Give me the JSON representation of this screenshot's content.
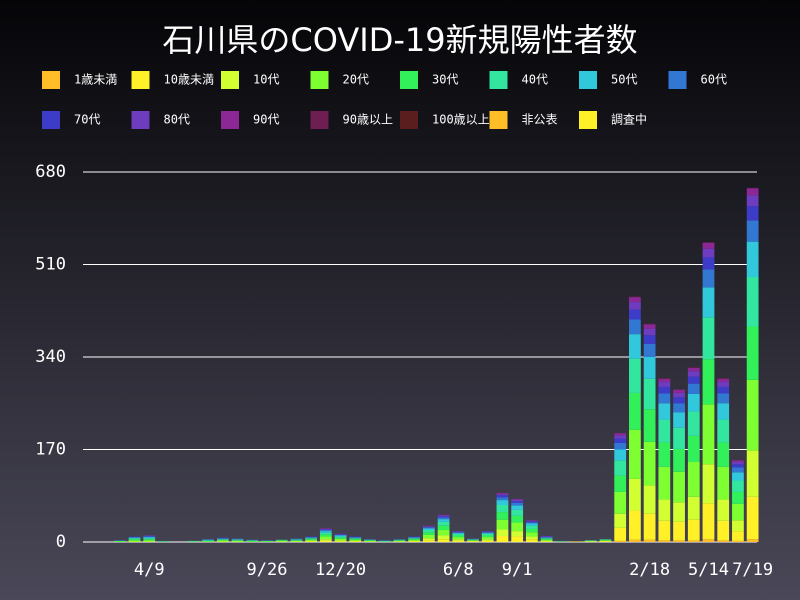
{
  "chart_data": {
    "type": "bar",
    "stacked": true,
    "title": "石川県のCOVID-19新規陽性者数",
    "categories": [
      null,
      null,
      null,
      null,
      "4/9",
      null,
      null,
      null,
      null,
      null,
      null,
      null,
      "9/26",
      null,
      null,
      null,
      null,
      "12/20",
      null,
      null,
      null,
      null,
      null,
      null,
      null,
      "6/8",
      null,
      null,
      null,
      "9/1",
      null,
      null,
      null,
      null,
      null,
      null,
      null,
      null,
      "2/18",
      null,
      null,
      null,
      "5/14",
      null,
      null,
      "7/19"
    ],
    "ylim": [
      0,
      680
    ],
    "yticks": [
      0,
      170,
      340,
      510,
      680
    ],
    "grid": true,
    "series": [
      {
        "name": "1歳未満",
        "color": "#ffbe28",
        "values": [
          0,
          0,
          0,
          0,
          0,
          0,
          0,
          0,
          0,
          0,
          0,
          0,
          0,
          0,
          0,
          0,
          0,
          0,
          0,
          0,
          0,
          0,
          0,
          0,
          0,
          0,
          0,
          0,
          0,
          0,
          0,
          0,
          0,
          0,
          0,
          0,
          2,
          4,
          4,
          3,
          3,
          3,
          5,
          3,
          2,
          5
        ]
      },
      {
        "name": "10歳未満",
        "color": "#fff028",
        "values": [
          0,
          0,
          0,
          0,
          0,
          0,
          0,
          0,
          0,
          0,
          0,
          0,
          0,
          0,
          0,
          1,
          2,
          1,
          1,
          0,
          0,
          0,
          1,
          3,
          5,
          2,
          1,
          2,
          11,
          10,
          5,
          1,
          0,
          1,
          1,
          1,
          24,
          54,
          48,
          36,
          34,
          38,
          66,
          36,
          18,
          78
        ]
      },
      {
        "name": "10代",
        "color": "#d2ff32",
        "values": [
          0,
          0,
          0,
          1,
          1,
          0,
          0,
          0,
          0,
          1,
          1,
          0,
          0,
          1,
          1,
          1,
          3,
          2,
          1,
          1,
          0,
          1,
          1,
          4,
          7,
          3,
          1,
          3,
          12,
          10,
          5,
          1,
          0,
          0,
          0,
          1,
          26,
          58,
          52,
          39,
          36,
          42,
          72,
          39,
          20,
          85
        ]
      },
      {
        "name": "20代",
        "color": "#7dff32",
        "values": [
          0,
          0,
          1,
          2,
          2,
          1,
          0,
          1,
          1,
          2,
          1,
          1,
          1,
          1,
          1,
          2,
          5,
          3,
          2,
          1,
          1,
          1,
          2,
          6,
          10,
          4,
          1,
          4,
          18,
          16,
          8,
          2,
          1,
          0,
          1,
          1,
          40,
          90,
          80,
          60,
          56,
          64,
          110,
          60,
          30,
          130
        ]
      },
      {
        "name": "30代",
        "color": "#32f05a",
        "values": [
          0,
          0,
          1,
          2,
          2,
          0,
          0,
          0,
          1,
          1,
          1,
          1,
          1,
          1,
          1,
          2,
          4,
          2,
          2,
          1,
          0,
          1,
          2,
          5,
          8,
          3,
          1,
          3,
          14,
          12,
          6,
          2,
          0,
          0,
          0,
          1,
          30,
          68,
          60,
          45,
          42,
          48,
          83,
          45,
          22,
          98
        ]
      },
      {
        "name": "40代",
        "color": "#32e6a0",
        "values": [
          0,
          0,
          0,
          2,
          2,
          0,
          0,
          0,
          1,
          1,
          1,
          1,
          0,
          1,
          1,
          1,
          3,
          2,
          1,
          1,
          0,
          1,
          1,
          4,
          7,
          3,
          1,
          3,
          13,
          11,
          6,
          1,
          0,
          0,
          1,
          1,
          28,
          63,
          56,
          42,
          39,
          45,
          77,
          42,
          21,
          91
        ]
      },
      {
        "name": "50代",
        "color": "#32c8dc",
        "values": [
          0,
          0,
          0,
          1,
          2,
          0,
          0,
          1,
          1,
          1,
          1,
          0,
          0,
          0,
          1,
          1,
          3,
          2,
          1,
          0,
          1,
          0,
          1,
          3,
          5,
          2,
          0,
          2,
          9,
          8,
          4,
          1,
          0,
          0,
          0,
          0,
          20,
          45,
          40,
          30,
          28,
          32,
          55,
          30,
          15,
          65
        ]
      },
      {
        "name": "60代",
        "color": "#3278d2",
        "values": [
          0,
          0,
          1,
          1,
          1,
          1,
          0,
          0,
          1,
          1,
          1,
          1,
          1,
          0,
          1,
          1,
          2,
          1,
          1,
          1,
          1,
          1,
          1,
          2,
          3,
          1,
          1,
          1,
          5,
          5,
          2,
          1,
          1,
          0,
          0,
          0,
          12,
          27,
          24,
          18,
          17,
          19,
          33,
          18,
          9,
          39
        ]
      },
      {
        "name": "70代",
        "color": "#3c3cc8",
        "values": [
          0,
          0,
          0,
          1,
          1,
          0,
          0,
          0,
          0,
          1,
          0,
          0,
          0,
          0,
          0,
          1,
          1,
          1,
          1,
          0,
          0,
          0,
          1,
          1,
          2,
          1,
          0,
          1,
          4,
          3,
          2,
          1,
          0,
          0,
          0,
          0,
          8,
          18,
          16,
          12,
          11,
          13,
          22,
          12,
          6,
          26
        ]
      },
      {
        "name": "80代",
        "color": "#6e3cbe",
        "values": [
          0,
          0,
          0,
          0,
          1,
          0,
          0,
          0,
          0,
          0,
          0,
          0,
          0,
          0,
          0,
          0,
          1,
          1,
          0,
          0,
          0,
          0,
          0,
          1,
          2,
          1,
          0,
          1,
          2,
          3,
          1,
          1,
          0,
          0,
          0,
          0,
          6,
          14,
          12,
          9,
          8,
          10,
          16,
          9,
          4,
          20
        ]
      },
      {
        "name": "90代",
        "color": "#8c2896",
        "values": [
          0,
          0,
          0,
          0,
          0,
          0,
          0,
          0,
          0,
          0,
          0,
          0,
          0,
          0,
          0,
          0,
          1,
          0,
          0,
          0,
          0,
          0,
          0,
          1,
          1,
          0,
          0,
          0,
          2,
          1,
          1,
          0,
          0,
          0,
          0,
          0,
          4,
          9,
          8,
          6,
          6,
          6,
          11,
          6,
          3,
          13
        ]
      },
      {
        "name": "90歳以上",
        "color": "#6e1e50",
        "values": [
          0,
          0,
          0,
          0,
          0,
          0,
          0,
          0,
          0,
          0,
          0,
          0,
          0,
          0,
          0,
          0,
          0,
          0,
          0,
          0,
          0,
          0,
          0,
          0,
          0,
          0,
          0,
          0,
          0,
          0,
          0,
          0,
          0,
          0,
          0,
          0,
          0,
          1,
          1,
          1,
          0,
          1,
          1,
          1,
          0,
          1
        ]
      },
      {
        "name": "100歳以上",
        "color": "#5a1e1e",
        "values": [
          0,
          0,
          0,
          0,
          0,
          0,
          0,
          0,
          0,
          0,
          0,
          0,
          0,
          0,
          0,
          0,
          0,
          0,
          0,
          0,
          0,
          0,
          0,
          0,
          0,
          0,
          0,
          0,
          0,
          0,
          0,
          0,
          0,
          0,
          0,
          0,
          0,
          0,
          0,
          0,
          0,
          0,
          0,
          0,
          0,
          0
        ]
      },
      {
        "name": "非公表",
        "color": "#ffbe28",
        "values": [
          0,
          0,
          0,
          0,
          0,
          0,
          0,
          0,
          0,
          0,
          0,
          0,
          0,
          0,
          0,
          0,
          0,
          0,
          0,
          0,
          0,
          0,
          0,
          0,
          0,
          0,
          0,
          0,
          0,
          0,
          0,
          0,
          0,
          0,
          0,
          0,
          0,
          0,
          0,
          0,
          0,
          0,
          0,
          0,
          0,
          0
        ]
      },
      {
        "name": "調査中",
        "color": "#fff028",
        "values": [
          0,
          0,
          0,
          0,
          0,
          0,
          0,
          0,
          0,
          0,
          0,
          0,
          0,
          0,
          0,
          0,
          0,
          0,
          0,
          0,
          0,
          0,
          0,
          0,
          0,
          0,
          0,
          0,
          0,
          0,
          0,
          0,
          0,
          0,
          0,
          0,
          0,
          0,
          0,
          0,
          0,
          0,
          0,
          0,
          0,
          0
        ]
      }
    ]
  }
}
